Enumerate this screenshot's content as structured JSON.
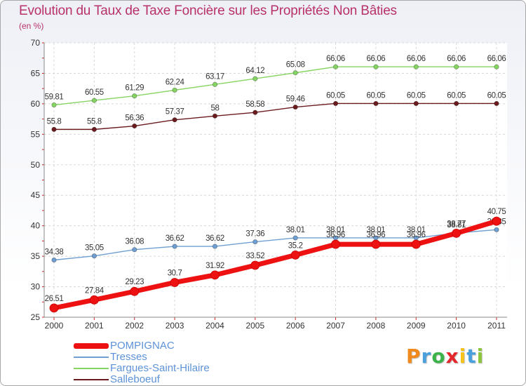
{
  "chart_data": {
    "type": "line",
    "title": "Evolution du Taux de Taxe Foncière sur les Propriétés Non Bâties",
    "subtitle": "(en %)",
    "x": [
      "2000",
      "2001",
      "2002",
      "2003",
      "2004",
      "2005",
      "2006",
      "2007",
      "2008",
      "2009",
      "2010",
      "2011"
    ],
    "ylim": [
      25,
      70
    ],
    "yticks": [
      "25",
      "30",
      "35",
      "40",
      "45",
      "50",
      "55",
      "60",
      "65",
      "70"
    ],
    "grid": true,
    "series": [
      {
        "name": "Fargues-Saint-Hilaire",
        "color": "#86d462",
        "values": [
          59.81,
          60.55,
          61.29,
          62.24,
          63.17,
          64.12,
          65.08,
          66.06,
          66.06,
          66.06,
          66.06,
          66.06
        ],
        "labels": [
          "59.81",
          "60.55",
          "61.29",
          "62.24",
          "63.17",
          "64.12",
          "65.08",
          "66.06",
          "66.06",
          "66.06",
          "66.06",
          "66.06"
        ]
      },
      {
        "name": "Salleboeuf",
        "color": "#6b1b1e",
        "values": [
          55.8,
          55.8,
          56.36,
          57.37,
          58,
          58.58,
          59.46,
          60.05,
          60.05,
          60.05,
          60.05,
          60.05
        ],
        "labels": [
          "55.8",
          "55.8",
          "56.36",
          "57.37",
          "58",
          "58.58",
          "59.46",
          "60.05",
          "60.05",
          "60.05",
          "60.05",
          "60.05"
        ]
      },
      {
        "name": "Tresses",
        "color": "#6f9fd2",
        "values": [
          34.38,
          35.05,
          36.08,
          36.62,
          36.62,
          37.36,
          38.01,
          38.01,
          38.01,
          38.01,
          38.81,
          39.35
        ],
        "labels": [
          "34.38",
          "35.05",
          "36.08",
          "36.62",
          "36.62",
          "37.36",
          "38.01",
          "38.01",
          "38.01",
          "38.01",
          "38.81",
          "39.35"
        ]
      },
      {
        "name": "POMPIGNAC",
        "color": "#ee1111",
        "values": [
          26.51,
          27.84,
          29.23,
          30.7,
          31.92,
          33.52,
          35.2,
          36.96,
          36.96,
          36.96,
          38.77,
          40.75
        ],
        "labels": [
          "26.51",
          "27.84",
          "29.23",
          "30.7",
          "31.92",
          "33.52",
          "35.2",
          "36.96",
          "36.96",
          "36.96",
          "38.77",
          "40.75"
        ]
      }
    ],
    "legend": [
      {
        "name": "POMPIGNAC",
        "color": "#ee1111",
        "text_color": "#5d92d8"
      },
      {
        "name": "Tresses",
        "color": "#6f9fd2",
        "text_color": "#5d92d8"
      },
      {
        "name": "Fargues-Saint-Hilaire",
        "color": "#86d462",
        "text_color": "#5d92d8"
      },
      {
        "name": "Salleboeuf",
        "color": "#6b1b1e",
        "text_color": "#5d92d8"
      }
    ],
    "legend_position": "bottom-left"
  },
  "logo": {
    "letters": [
      "P",
      "r",
      "o",
      "x",
      "i",
      "t",
      "i"
    ],
    "colors": [
      "#f08a1c",
      "#4aa0dd",
      "#3bb24a",
      "#e5272d",
      "#f6c21c",
      "#4aa0dd",
      "#8cc63e"
    ]
  }
}
